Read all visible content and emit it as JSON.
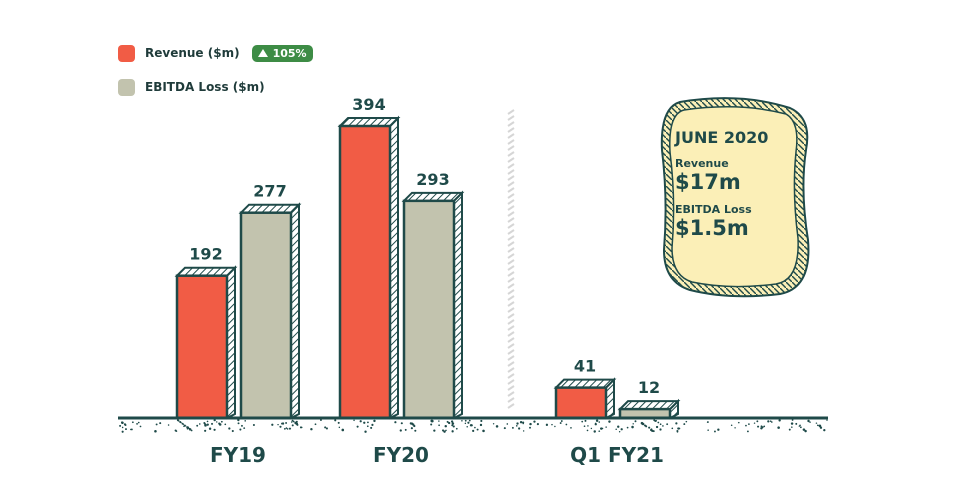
{
  "colors": {
    "revenue": "#f15c45",
    "ebitda": "#c2c3ae",
    "outline": "#1f4a49",
    "badge": "#3d8c45",
    "callout_bg": "#fbefb7"
  },
  "legend": {
    "revenue_label": "Revenue ($m)",
    "ebitda_label": "EBITDA Loss ($m)",
    "badge_text": "105%",
    "badge_icon": "up-triangle-icon"
  },
  "callout": {
    "title": "JUNE 2020",
    "revenue_label": "Revenue",
    "revenue_value": "$17m",
    "ebitda_label": "EBITDA Loss",
    "ebitda_value": "$1.5m"
  },
  "chart_data": {
    "type": "bar",
    "categories": [
      "FY19",
      "FY20",
      "Q1 FY21"
    ],
    "series": [
      {
        "name": "Revenue ($m)",
        "values": [
          192,
          394,
          41
        ]
      },
      {
        "name": "EBITDA Loss ($m)",
        "values": [
          277,
          293,
          12
        ]
      }
    ],
    "data_labels": [
      [
        "192",
        "394",
        "41"
      ],
      [
        "277",
        "293",
        "12"
      ]
    ],
    "title": "",
    "xlabel": "",
    "ylabel": "",
    "legend_position": "top-left",
    "grid": false,
    "separator_before_category": "Q1 FY21"
  }
}
